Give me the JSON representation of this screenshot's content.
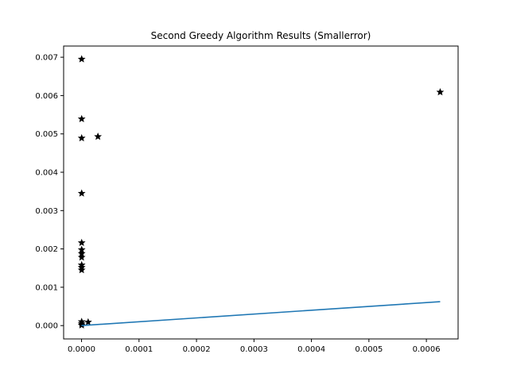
{
  "chart_data": {
    "type": "scatter",
    "title": "Second Greedy Algorithm Results (Smallerror)",
    "xlabel": "",
    "ylabel": "",
    "xlim": [
      -3.12e-05,
      0.0006552
    ],
    "ylim": [
      -0.000348,
      0.007292
    ],
    "grid": false,
    "x_ticks": [
      0.0,
      0.0001,
      0.0002,
      0.0003,
      0.0004,
      0.0005,
      0.0006
    ],
    "x_tick_labels": [
      "0.0000",
      "0.0001",
      "0.0002",
      "0.0003",
      "0.0004",
      "0.0005",
      "0.0006"
    ],
    "y_ticks": [
      0.0,
      0.001,
      0.002,
      0.003,
      0.004,
      0.005,
      0.006,
      0.007
    ],
    "y_tick_labels": [
      "0.000",
      "0.001",
      "0.002",
      "0.003",
      "0.004",
      "0.005",
      "0.006",
      "0.007"
    ],
    "series": [
      {
        "kind": "points",
        "marker": "star",
        "color": "#000000",
        "points": [
          [
            2e-07,
            0.00695
          ],
          [
            2e-07,
            0.00539
          ],
          [
            2e-07,
            0.00489
          ],
          [
            2.85e-05,
            0.00493
          ],
          [
            2e-07,
            0.00345
          ],
          [
            2e-07,
            0.00216
          ],
          [
            2e-07,
            0.00198
          ],
          [
            2e-07,
            0.00188
          ],
          [
            2e-07,
            0.00178
          ],
          [
            2e-07,
            0.00158
          ],
          [
            2e-07,
            0.00152
          ],
          [
            2e-07,
            0.00145
          ],
          [
            2e-07,
            0.0001
          ],
          [
            2e-07,
            5e-05
          ],
          [
            2e-07,
            1e-05
          ],
          [
            1.15e-05,
            9e-05
          ],
          [
            0.000624,
            0.00609
          ]
        ]
      },
      {
        "kind": "line",
        "color": "#1f77b4",
        "points": [
          [
            0.0,
            0.0
          ],
          [
            0.000624,
            0.000624
          ]
        ]
      }
    ]
  }
}
